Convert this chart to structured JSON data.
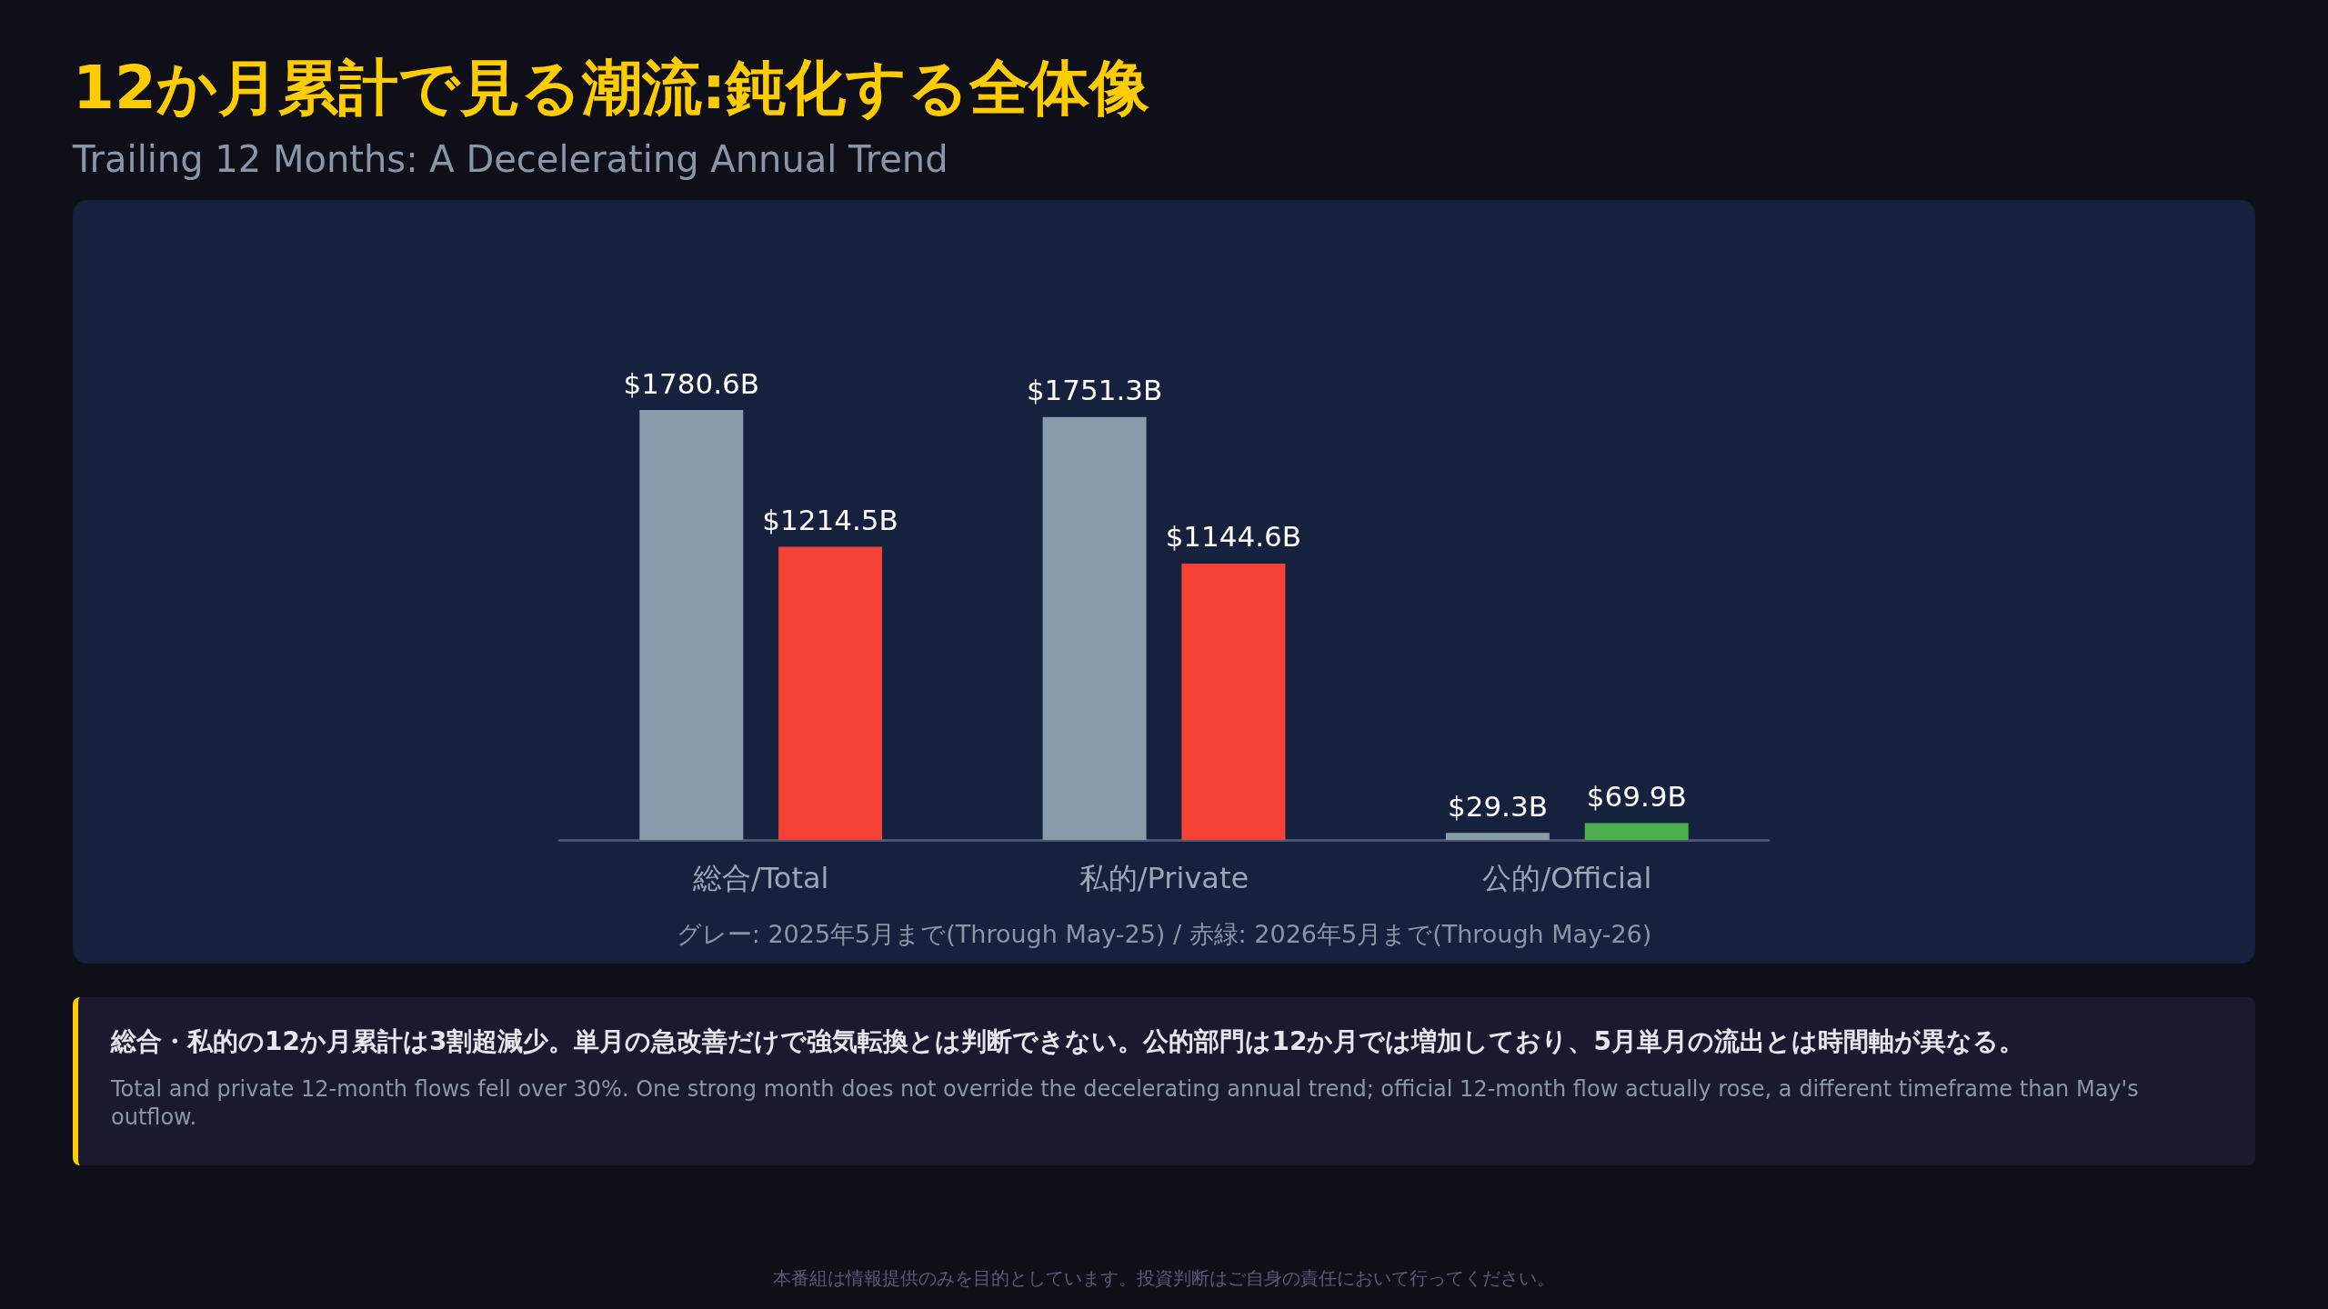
{
  "chart_data": {
    "type": "bar",
    "title": "12か月累計で見る潮流:鈍化する全体像",
    "subtitle": "Trailing 12 Months: A Decelerating Annual Trend",
    "categories": [
      "総合/Total",
      "私的/Private",
      "公的/Official"
    ],
    "series": [
      {
        "color": "#8a9bab",
        "values": [
          1780.6,
          1751.3,
          29.3
        ],
        "value_labels": [
          "$1780.6B",
          "$1751.3B",
          "$29.3B"
        ]
      },
      {
        "colors": [
          "#f44336",
          "#f44336",
          "#4caf50"
        ],
        "values": [
          1214.5,
          1144.6,
          69.9
        ],
        "value_labels": [
          "$1214.5B",
          "$1144.6B",
          "$69.9B"
        ]
      }
    ],
    "tick_labels": "x",
    "annotations": [
      "グレー: 2025年5月まで(Through May-25) / 赤緑: 2026年5月まで(Through May-26)",
      "総合・私的の12か月累計は3割超減少。単月の急改善だけで強気転換とは判断できない。公的部門は12か月では増加しており、5月単月の流出とは時間軸が異なる。",
      "Total and private 12-month flows fell over 30%. One strong month does not override the decelerating annual trend; official 12-month flow actually rose, a different timeframe than May's outflow.",
      "本番組は情報提供のみを目的としています。投資判断はご自身の責任において行ってください。"
    ]
  }
}
